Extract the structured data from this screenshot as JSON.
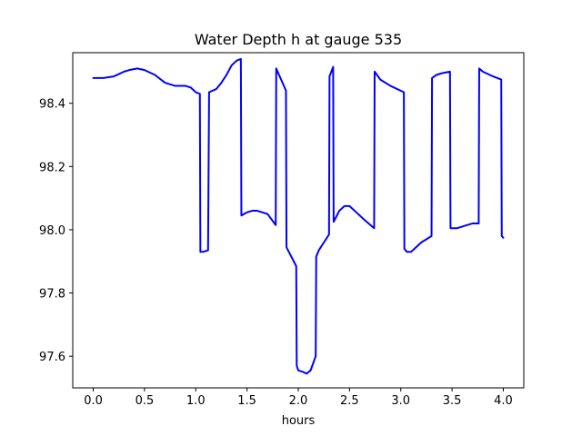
{
  "chart_data": {
    "type": "line",
    "title": "Water Depth h at gauge 535",
    "xlabel": "hours",
    "ylabel": "",
    "xlim": [
      -0.2,
      4.2
    ],
    "ylim": [
      97.5,
      98.56
    ],
    "xticks": [
      0.0,
      0.5,
      1.0,
      1.5,
      2.0,
      2.5,
      3.0,
      3.5,
      4.0
    ],
    "xtick_labels": [
      "0.0",
      "0.5",
      "1.0",
      "1.5",
      "2.0",
      "2.5",
      "3.0",
      "3.5",
      "4.0"
    ],
    "yticks": [
      97.6,
      97.8,
      98.0,
      98.2,
      98.4
    ],
    "ytick_labels": [
      "97.6",
      "97.8",
      "98.0",
      "98.2",
      "98.4"
    ],
    "grid": false,
    "series": [
      {
        "color": "#0000ff",
        "x": [
          0.0,
          0.1,
          0.2,
          0.3,
          0.35,
          0.43,
          0.5,
          0.6,
          0.7,
          0.8,
          0.9,
          0.95,
          1.0,
          1.04,
          1.045,
          1.07,
          1.12,
          1.13,
          1.2,
          1.25,
          1.3,
          1.35,
          1.4,
          1.44,
          1.445,
          1.5,
          1.55,
          1.6,
          1.65,
          1.7,
          1.78,
          1.785,
          1.88,
          1.885,
          1.9,
          1.98,
          1.985,
          2.0,
          2.05,
          2.08,
          2.12,
          2.17,
          2.175,
          2.2,
          2.25,
          2.3,
          2.305,
          2.34,
          2.345,
          2.4,
          2.45,
          2.5,
          2.55,
          2.65,
          2.74,
          2.745,
          2.8,
          2.9,
          3.03,
          3.035,
          3.06,
          3.1,
          3.15,
          3.2,
          3.25,
          3.3,
          3.305,
          3.35,
          3.4,
          3.48,
          3.485,
          3.55,
          3.6,
          3.65,
          3.7,
          3.76,
          3.765,
          3.8,
          3.9,
          3.98,
          3.985,
          4.0
        ],
        "y": [
          98.48,
          98.48,
          98.485,
          98.5,
          98.505,
          98.51,
          98.505,
          98.49,
          98.465,
          98.455,
          98.455,
          98.45,
          98.435,
          98.43,
          97.93,
          97.93,
          97.935,
          98.435,
          98.445,
          98.465,
          98.49,
          98.52,
          98.535,
          98.54,
          98.045,
          98.055,
          98.06,
          98.06,
          98.055,
          98.05,
          98.015,
          98.51,
          98.44,
          97.945,
          97.935,
          97.885,
          97.57,
          97.555,
          97.55,
          97.545,
          97.555,
          97.6,
          97.915,
          97.935,
          97.96,
          97.985,
          98.485,
          98.515,
          98.025,
          98.06,
          98.075,
          98.075,
          98.06,
          98.03,
          98.005,
          98.5,
          98.475,
          98.455,
          98.435,
          97.94,
          97.93,
          97.93,
          97.945,
          97.96,
          97.97,
          97.98,
          98.48,
          98.49,
          98.495,
          98.5,
          98.005,
          98.005,
          98.01,
          98.015,
          98.02,
          98.02,
          98.51,
          98.5,
          98.485,
          98.475,
          97.98,
          97.975
        ]
      }
    ]
  }
}
